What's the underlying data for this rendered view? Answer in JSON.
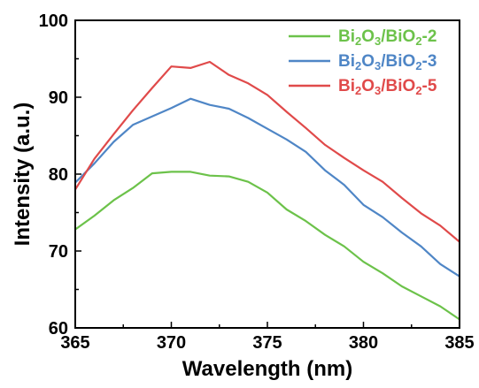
{
  "chart_data": {
    "type": "line",
    "title": "",
    "xlabel": "Wavelength (nm)",
    "ylabel": "Intensity (a.u.)",
    "xlim": [
      365,
      385
    ],
    "ylim": [
      60,
      100
    ],
    "xticks": [
      "365",
      "370",
      "375",
      "380",
      "385"
    ],
    "yticks": [
      "60",
      "70",
      "80",
      "90",
      "100"
    ],
    "legend_position": "top-right",
    "grid": false,
    "x": [
      365,
      366,
      367,
      368,
      369,
      370,
      371,
      372,
      373,
      374,
      375,
      376,
      377,
      378,
      379,
      380,
      381,
      382,
      383,
      384,
      385
    ],
    "series": [
      {
        "name_parts": [
          "Bi",
          "2",
          "O",
          "3",
          "/BiO",
          "2",
          "-2"
        ],
        "color": "#6cc24a",
        "values": [
          72.8,
          74.6,
          76.6,
          78.2,
          80.1,
          80.3,
          80.3,
          79.8,
          79.7,
          79.0,
          77.6,
          75.4,
          73.9,
          72.1,
          70.6,
          68.6,
          67.1,
          65.4,
          64.1,
          62.8,
          61.1
        ]
      },
      {
        "name_parts": [
          "Bi",
          "2",
          "O",
          "3",
          "/BiO",
          "2",
          "-3"
        ],
        "color": "#4f86c6",
        "values": [
          78.9,
          81.4,
          84.2,
          86.4,
          87.5,
          88.6,
          89.8,
          89.0,
          88.5,
          87.3,
          85.9,
          84.5,
          82.9,
          80.5,
          78.6,
          76.0,
          74.4,
          72.4,
          70.6,
          68.3,
          66.7
        ]
      },
      {
        "name_parts": [
          "Bi",
          "2",
          "O",
          "3",
          "/BiO",
          "2",
          "-5"
        ],
        "color": "#e04a4a",
        "values": [
          78.0,
          82.0,
          85.2,
          88.3,
          91.2,
          94.0,
          93.8,
          94.6,
          92.9,
          91.8,
          90.3,
          88.1,
          86.0,
          83.8,
          82.1,
          80.5,
          79.0,
          76.9,
          74.9,
          73.3,
          71.2
        ]
      }
    ]
  }
}
